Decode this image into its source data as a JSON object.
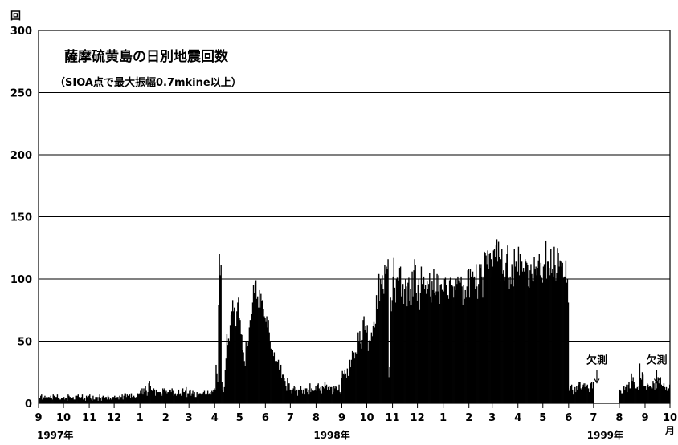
{
  "chart_data": {
    "type": "bar",
    "title": "薩摩硫黄島の日別地震回数",
    "subtitle": "（SIOA点で最大振幅0.7mkine以上）",
    "y_unit": "回",
    "x_unit": "月",
    "ylim": [
      0,
      300
    ],
    "yticks": [
      0,
      50,
      100,
      150,
      200,
      250,
      300
    ],
    "xlim": [
      "1997-09-01",
      "1999-10-01"
    ],
    "xtick_labels": [
      "9",
      "10",
      "11",
      "12",
      "1",
      "2",
      "3",
      "4",
      "5",
      "6",
      "7",
      "8",
      "9",
      "10",
      "11",
      "12",
      "1",
      "2",
      "3",
      "4",
      "5",
      "6",
      "7",
      "8",
      "9",
      "10"
    ],
    "year_labels": [
      "1997年",
      "1998年",
      "1999年"
    ],
    "grid": true,
    "annotations": [
      {
        "text": "欠測",
        "date": "1999-07-05",
        "value": 30
      },
      {
        "text": "欠測",
        "date": "1999-09-15",
        "value": 30
      }
    ],
    "series": [
      {
        "x_start": "1997-09-01",
        "x_end": "1999-09-30",
        "values": [
          0,
          4,
          6,
          7,
          3,
          5,
          4,
          6,
          4,
          5,
          4,
          5,
          5,
          4,
          6,
          4,
          3,
          7,
          6,
          5,
          5,
          5,
          7,
          4,
          4,
          3,
          3,
          4,
          4,
          5,
          5,
          3,
          4,
          4,
          2,
          7,
          6,
          5,
          5,
          4,
          4,
          5,
          3,
          3,
          6,
          6,
          6,
          7,
          5,
          5,
          4,
          5,
          7,
          3,
          4,
          4,
          2,
          6,
          5,
          3,
          6,
          7,
          4,
          3,
          2,
          6,
          3,
          3,
          5,
          5,
          5,
          2,
          5,
          7,
          4,
          2,
          5,
          6,
          5,
          4,
          5,
          5,
          3,
          6,
          5,
          3,
          4,
          3,
          5,
          5,
          5,
          6,
          4,
          4,
          5,
          5,
          3,
          6,
          5,
          5,
          7,
          3,
          6,
          8,
          8,
          5,
          7,
          6,
          3,
          7,
          4,
          8,
          5,
          5,
          6,
          5,
          4,
          5,
          8,
          8,
          7,
          8,
          10,
          8,
          12,
          7,
          12,
          9,
          14,
          10,
          6,
          9,
          16,
          18,
          14,
          11,
          10,
          9,
          12,
          11,
          6,
          11,
          4,
          9,
          9,
          9,
          9,
          8,
          6,
          12,
          11,
          12,
          9,
          10,
          8,
          9,
          9,
          11,
          11,
          9,
          12,
          10,
          6,
          7,
          8,
          6,
          7,
          8,
          11,
          7,
          8,
          6,
          11,
          12,
          9,
          9,
          10,
          13,
          5,
          8,
          8,
          10,
          11,
          6,
          8,
          10,
          7,
          9,
          5,
          5,
          9,
          6,
          7,
          8,
          8,
          7,
          8,
          8,
          9,
          10,
          7,
          8,
          7,
          10,
          7,
          8,
          9,
          7,
          10,
          9,
          11,
          12,
          11,
          31,
          24,
          17,
          79,
          120,
          103,
          111,
          17,
          11,
          9,
          13,
          27,
          36,
          56,
          47,
          52,
          50,
          63,
          71,
          74,
          83,
          74,
          77,
          61,
          62,
          74,
          81,
          85,
          69,
          67,
          56,
          55,
          43,
          41,
          34,
          30,
          49,
          45,
          46,
          49,
          61,
          67,
          62,
          72,
          81,
          95,
          89,
          97,
          99,
          84,
          86,
          77,
          91,
          77,
          88,
          82,
          83,
          76,
          70,
          69,
          66,
          70,
          61,
          67,
          57,
          50,
          44,
          43,
          43,
          38,
          41,
          34,
          30,
          34,
          33,
          35,
          27,
          28,
          31,
          20,
          23,
          23,
          20,
          18,
          14,
          10,
          20,
          16,
          16,
          11,
          11,
          8,
          11,
          12,
          14,
          10,
          13,
          11,
          6,
          11,
          11,
          10,
          14,
          11,
          8,
          11,
          12,
          7,
          12,
          12,
          9,
          11,
          7,
          16,
          9,
          12,
          11,
          10,
          10,
          11,
          14,
          10,
          15,
          16,
          12,
          10,
          13,
          8,
          14,
          13,
          12,
          17,
          14,
          15,
          11,
          13,
          14,
          11,
          13,
          13,
          7,
          9,
          14,
          12,
          14,
          13,
          10,
          11,
          15,
          9,
          8,
          20,
          26,
          24,
          23,
          27,
          24,
          20,
          28,
          22,
          22,
          35,
          29,
          35,
          42,
          26,
          41,
          36,
          41,
          40,
          40,
          57,
          49,
          58,
          48,
          44,
          51,
          67,
          70,
          59,
          62,
          57,
          63,
          42,
          50,
          51,
          50,
          57,
          54,
          62,
          66,
          61,
          64,
          87,
          76,
          104,
          104,
          82,
          100,
          96,
          103,
          92,
          88,
          111,
          104,
          110,
          108,
          116,
          21,
          29,
          85,
          74,
          83,
          102,
          117,
          93,
          81,
          100,
          101,
          102,
          99,
          109,
          110,
          86,
          89,
          96,
          80,
          92,
          100,
          94,
          78,
          97,
          101,
          82,
          92,
          79,
          106,
          86,
          107,
          116,
          111,
          89,
          82,
          95,
          100,
          75,
          89,
          110,
          96,
          79,
          102,
          92,
          95,
          88,
          98,
          92,
          96,
          105,
          86,
          81,
          98,
          91,
          108,
          89,
          87,
          90,
          104,
          90,
          103,
          80,
          95,
          96,
          91,
          92,
          90,
          100,
          101,
          95,
          84,
          87,
          84,
          99,
          101,
          83,
          95,
          94,
          85,
          94,
          91,
          100,
          96,
          102,
          99,
          99,
          97,
          102,
          94,
          79,
          95,
          84,
          91,
          85,
          94,
          107,
          108,
          85,
          108,
          102,
          95,
          106,
          101,
          102,
          92,
          112,
          94,
          84,
          96,
          112,
          109,
          112,
          102,
          85,
          102,
          122,
          121,
          119,
          112,
          123,
          108,
          120,
          121,
          116,
          102,
          110,
          123,
          124,
          118,
          127,
          132,
          114,
          130,
          118,
          98,
          116,
          124,
          104,
          107,
          99,
          102,
          113,
          120,
          127,
          101,
          92,
          102,
          96,
          112,
          110,
          94,
          124,
          110,
          114,
          106,
          106,
          126,
          103,
          120,
          97,
          114,
          106,
          109,
          106,
          116,
          114,
          113,
          111,
          94,
          93,
          107,
          112,
          104,
          99,
          98,
          118,
          108,
          110,
          103,
          109,
          115,
          120,
          103,
          113,
          101,
          97,
          110,
          112,
          97,
          131,
          100,
          114,
          114,
          109,
          103,
          124,
          105,
          108,
          102,
          126,
          111,
          99,
          105,
          125,
          121,
          110,
          115,
          114,
          110,
          113,
          101,
          102,
          102,
          115,
          97,
          100,
          81,
          10,
          12,
          14,
          15,
          11,
          7,
          9,
          13,
          9,
          14,
          11,
          15,
          17,
          17,
          12,
          11,
          13,
          15,
          16,
          13,
          16,
          14,
          15,
          12,
          9,
          12,
          16,
          17,
          12,
          17,
          0,
          0,
          0,
          0,
          0,
          0,
          0,
          0,
          0,
          0,
          0,
          0,
          0,
          0,
          0,
          0,
          0,
          0,
          0,
          0,
          0,
          0,
          0,
          0,
          0,
          0,
          0,
          0,
          0,
          0,
          0,
          11,
          10,
          8,
          8,
          13,
          14,
          11,
          13,
          15,
          9,
          15,
          17,
          12,
          12,
          24,
          18,
          21,
          17,
          15,
          12,
          12,
          13,
          11,
          14,
          32,
          20,
          19,
          25,
          23,
          14,
          14,
          14,
          11,
          16,
          15,
          13,
          14,
          14,
          13,
          12,
          18,
          16,
          11,
          17,
          12,
          17,
          21,
          16,
          20,
          21,
          15,
          14,
          14,
          16,
          13,
          11,
          13,
          10,
          12,
          12,
          15
        ]
      }
    ]
  }
}
